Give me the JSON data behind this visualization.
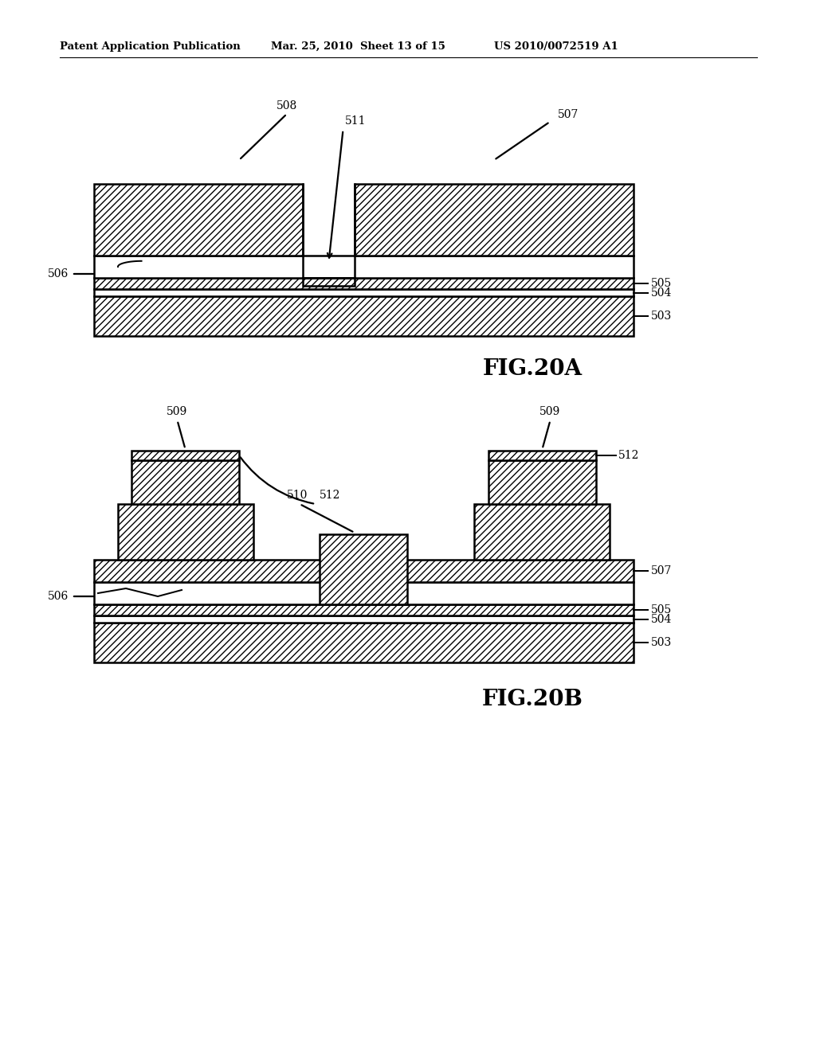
{
  "header_left": "Patent Application Publication",
  "header_mid": "Mar. 25, 2010  Sheet 13 of 15",
  "header_right": "US 2010/0072519 A1",
  "fig_label_A": "FIG.20A",
  "fig_label_B": "FIG.20B",
  "bg_color": "#ffffff",
  "line_color": "#000000"
}
